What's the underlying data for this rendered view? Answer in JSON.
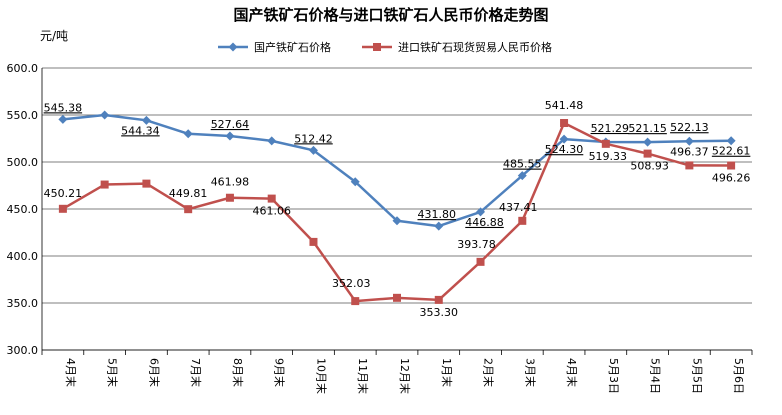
{
  "chart_data": {
    "type": "line",
    "title": "国产铁矿石价格与进口铁矿石人民币价格走势图",
    "unit_label": "元/吨",
    "ylim": [
      300,
      600
    ],
    "yticks": [
      "300.0",
      "350.0",
      "400.0",
      "450.0",
      "500.0",
      "550.0",
      "600.0"
    ],
    "ytick_values": [
      300,
      350,
      400,
      450,
      500,
      550,
      600
    ],
    "grid": true,
    "legend_position": "top",
    "categories": [
      "4月末",
      "5月末",
      "6月末",
      "7月末",
      "8月末",
      "9月末",
      "10月末",
      "11月末",
      "12月末",
      "1月末",
      "2月末",
      "3月末",
      "4月末",
      "5月3日",
      "5月4日",
      "5月5日",
      "5月6日"
    ],
    "series": [
      {
        "name": "国产铁矿石价格",
        "color": "#4f81bd",
        "marker": "diamond",
        "values": [
          545.38,
          550.0,
          544.34,
          530.0,
          527.64,
          522.5,
          512.42,
          479.0,
          437.5,
          431.8,
          446.88,
          485.55,
          524.3,
          521.29,
          521.15,
          522.13,
          522.61
        ],
        "labels": [
          "545.38",
          "",
          "544.34",
          "",
          "527.64",
          "",
          "512.42",
          "",
          "",
          "431.80",
          "446.88",
          "485.55",
          "524.30",
          "521.29",
          "521.15",
          "522.13",
          "522.61"
        ]
      },
      {
        "name": "进口铁矿石现货贸易人民币价格",
        "color": "#c0504d",
        "marker": "square",
        "values": [
          450.21,
          476.0,
          477.0,
          449.81,
          461.98,
          461.06,
          415.0,
          352.03,
          355.5,
          353.3,
          393.78,
          437.41,
          541.48,
          519.33,
          508.93,
          496.37,
          496.26
        ],
        "labels": [
          "450.21",
          "",
          "",
          "449.81",
          "461.98",
          "461.06",
          "",
          "352.03",
          "",
          "353.30",
          "393.78",
          "437.41",
          "541.48",
          "519.33",
          "508.93",
          "496.37",
          "496.26"
        ]
      }
    ]
  }
}
